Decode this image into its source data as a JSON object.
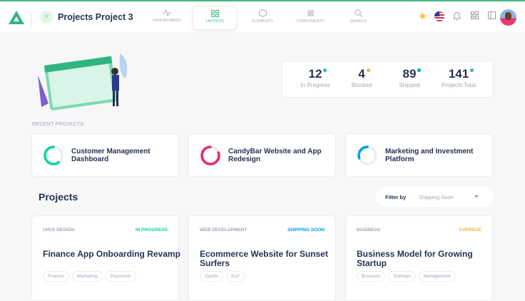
{
  "header": {
    "badge": "H",
    "title": "Projects Project 3",
    "nav": [
      {
        "label": "DASHBOARDS",
        "icon": "activity-icon"
      },
      {
        "label": "LAYOUTS",
        "icon": "grid-icon",
        "active": true
      },
      {
        "label": "ELEMENTS",
        "icon": "box-icon"
      },
      {
        "label": "COMPONENTS",
        "icon": "cpu-icon"
      },
      {
        "label": "SEARCH",
        "icon": "search-icon"
      }
    ]
  },
  "stats": [
    {
      "value": "12",
      "label": "In Progress",
      "color": "#06d6a0"
    },
    {
      "value": "4",
      "label": "Blocked",
      "color": "#faae42"
    },
    {
      "value": "89",
      "label": "Shipped",
      "color": "#039be5"
    },
    {
      "value": "141",
      "label": "Projects Total",
      "color": "#41b983"
    }
  ],
  "recent": {
    "label": "RECENT PROJECTS",
    "items": [
      {
        "title": "Customer Management Dashboard",
        "progress": 0.6,
        "color": "#06d6a0"
      },
      {
        "title": "CandyBar Website and App Redesign",
        "progress": 0.8,
        "color": "#e62965"
      },
      {
        "title": "Marketing and Investment Platform",
        "progress": 0.3,
        "color": "#039be5"
      }
    ]
  },
  "projects": {
    "title": "Projects",
    "filter_label": "Filter by",
    "filter_value": "Shipping Soon",
    "items": [
      {
        "category": "UI/UX DESIGN",
        "status": "IN PROGRESS",
        "status_color": "#06d6a0",
        "title": "Finance App Onboarding Revamp",
        "tags": [
          "Finance",
          "Marketing",
          "Payments"
        ]
      },
      {
        "category": "WEB DEVELOPMENT",
        "status": "SHIPPING SOON",
        "status_color": "#039be5",
        "title": "Ecommerce Website for Sunset Surfers",
        "tags": [
          "Sports",
          "Surf"
        ]
      },
      {
        "category": "BUSINESS",
        "status": "OVERDUE",
        "status_color": "#faae42",
        "title": "Business Model for Growing Startup",
        "tags": [
          "Business",
          "Startups",
          "Management"
        ]
      }
    ]
  }
}
